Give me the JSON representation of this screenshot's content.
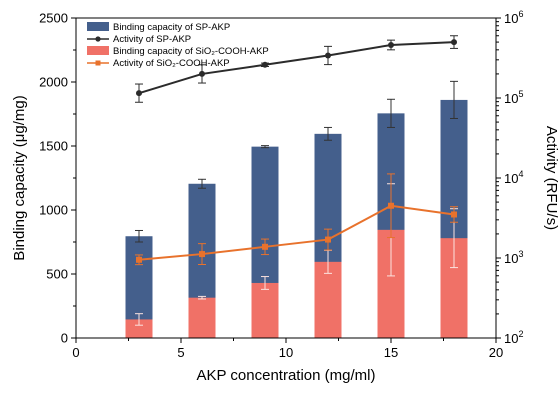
{
  "chart_data": {
    "type": "bar",
    "xlabel": "AKP concentration (mg/ml)",
    "ylabel": "Binding capacity (μg/mg)",
    "y2label": "Activity (RFU/s)",
    "xlim": [
      0,
      20
    ],
    "ylim": [
      0,
      2500
    ],
    "y2lim": [
      100,
      1000000
    ],
    "y2scale": "log",
    "x_ticks": [
      "0",
      "5",
      "10",
      "15",
      "20"
    ],
    "y_ticks": [
      "0",
      "500",
      "1000",
      "1500",
      "2000",
      "2500"
    ],
    "y2_ticks": [
      {
        "base": "10",
        "exp": "2"
      },
      {
        "base": "10",
        "exp": "3"
      },
      {
        "base": "10",
        "exp": "4"
      },
      {
        "base": "10",
        "exp": "5"
      },
      {
        "base": "10",
        "exp": "6"
      }
    ],
    "x": [
      3,
      6,
      9,
      12,
      15,
      18
    ],
    "legend_placement": "top-left",
    "series": [
      {
        "name": "Binding capacity of SP-AKP",
        "kind": "bar",
        "axis": "left",
        "color": "#445f8c",
        "values": [
          795,
          1205,
          1495,
          1595,
          1755,
          1860
        ],
        "err": [
          45,
          35,
          8,
          50,
          110,
          145
        ]
      },
      {
        "name": "Activity of SP-AKP",
        "kind": "line",
        "axis": "right",
        "color": "#2b2b2b",
        "marker": "circle",
        "values": [
          115000,
          200000,
          260000,
          340000,
          460000,
          500000
        ],
        "err_factor": [
          1.3,
          1.3,
          1.05,
          1.3,
          1.15,
          1.2
        ]
      },
      {
        "name": "Binding capacity of SiO₂-COOH-AKP",
        "kind": "bar",
        "axis": "left",
        "color": "#f07167",
        "values": [
          145,
          315,
          430,
          595,
          845,
          780
        ],
        "err": [
          45,
          10,
          50,
          90,
          360,
          230
        ]
      },
      {
        "name": "Activity of SiO₂-COOH-AKP",
        "kind": "line",
        "axis": "right",
        "color": "#e8722c",
        "marker": "square",
        "values": [
          950,
          1120,
          1380,
          1700,
          4500,
          3500
        ],
        "err_factor": [
          1.15,
          1.35,
          1.25,
          1.35,
          2.5,
          1.25
        ]
      }
    ]
  }
}
